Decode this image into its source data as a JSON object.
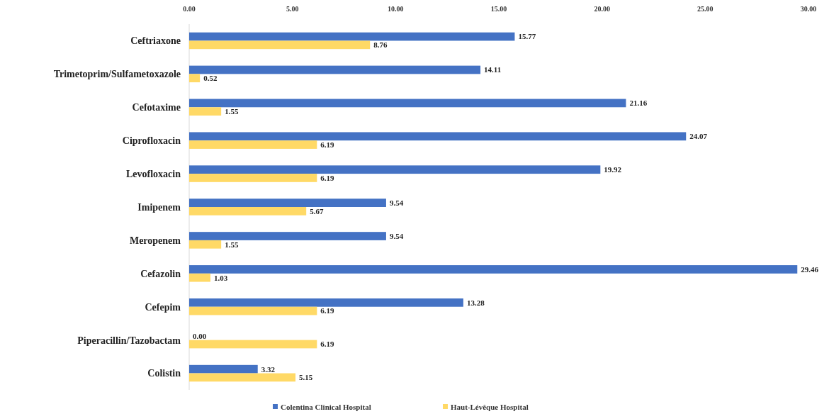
{
  "chart_data": {
    "type": "bar",
    "orientation": "horizontal",
    "categories": [
      "Ceftriaxone",
      "Trimetoprim/Sulfametoxazole",
      "Cefotaxime",
      "Ciprofloxacin",
      "Levofloxacin",
      "Imipenem",
      "Meropenem",
      "Cefazolin",
      "Cefepim",
      "Piperacillin/Tazobactam",
      "Colistin"
    ],
    "series": [
      {
        "name": "Colentina Clinical Hospital",
        "color": "#4472c4",
        "values": [
          15.77,
          14.11,
          21.16,
          24.07,
          19.92,
          9.54,
          9.54,
          29.46,
          13.28,
          0,
          3.32
        ],
        "value_labels": [
          "15.77",
          "14.11",
          "21.16",
          "24.07",
          "19.92",
          "9.54",
          "9.54",
          "29.46",
          "13.28",
          "0.00",
          "3.32"
        ]
      },
      {
        "name": "Haut-Lévêque Hospital",
        "color": "#ffd966",
        "values": [
          8.76,
          0.52,
          1.55,
          6.19,
          6.19,
          5.67,
          1.55,
          1.03,
          6.19,
          6.19,
          5.15
        ],
        "value_labels": [
          "8.76",
          "0.52",
          "1.55",
          "6.19",
          "6.19",
          "5.67",
          "1.55",
          "1.03",
          "6.19",
          "6.19",
          "5.15"
        ]
      }
    ],
    "xlim": [
      0,
      30
    ],
    "xticks": [
      {
        "value": 0,
        "label": "0.00"
      },
      {
        "value": 5,
        "label": "5.00"
      },
      {
        "value": 10,
        "label": "10.00"
      },
      {
        "value": 15,
        "label": "15.00"
      },
      {
        "value": 20,
        "label": "20.00"
      },
      {
        "value": 25,
        "label": "25.00"
      },
      {
        "value": 30,
        "label": "30.00"
      }
    ],
    "grid": false,
    "legend": "bottom"
  }
}
